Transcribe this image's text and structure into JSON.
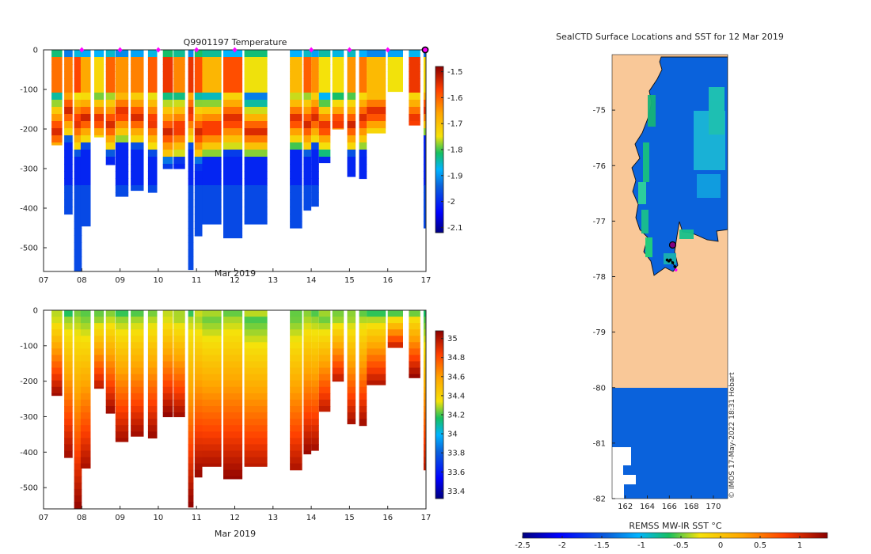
{
  "chart_data": [
    {
      "type": "heatmap",
      "title": "Q9901197  Temperature",
      "xlabel": "Mar 2019",
      "ylabel": "",
      "x_ticks": [
        "07",
        "08",
        "09",
        "10",
        "11",
        "12",
        "13",
        "14",
        "15",
        "16",
        "17"
      ],
      "x_range": [
        7,
        17
      ],
      "y_ticks": [
        0,
        -100,
        -200,
        -300,
        -400,
        -500
      ],
      "y_range": [
        -560,
        0
      ],
      "colorbar": {
        "ticks": [
          -1.5,
          -1.6,
          -1.7,
          -1.8,
          -1.9,
          -2,
          -2.1
        ],
        "min": -2.12,
        "max": -1.48
      },
      "markers_x": [
        8,
        9,
        10,
        11,
        12,
        14,
        15,
        16,
        17
      ],
      "profiles": [
        {
          "x": 7.35,
          "w": 0.28,
          "depth": 240
        },
        {
          "x": 7.65,
          "w": 0.22,
          "depth": 415
        },
        {
          "x": 7.9,
          "w": 0.2,
          "depth": 560
        },
        {
          "x": 8.1,
          "w": 0.26,
          "depth": 445
        },
        {
          "x": 8.45,
          "w": 0.25,
          "depth": 220
        },
        {
          "x": 8.75,
          "w": 0.24,
          "depth": 290
        },
        {
          "x": 9.05,
          "w": 0.34,
          "depth": 370
        },
        {
          "x": 9.45,
          "w": 0.34,
          "depth": 355
        },
        {
          "x": 9.85,
          "w": 0.24,
          "depth": 360
        },
        {
          "x": 10.25,
          "w": 0.26,
          "depth": 300
        },
        {
          "x": 10.55,
          "w": 0.3,
          "depth": 300
        },
        {
          "x": 10.85,
          "w": 0.14,
          "depth": 555
        },
        {
          "x": 11.05,
          "w": 0.2,
          "depth": 470
        },
        {
          "x": 11.4,
          "w": 0.5,
          "depth": 440
        },
        {
          "x": 11.95,
          "w": 0.5,
          "depth": 475
        },
        {
          "x": 12.55,
          "w": 0.6,
          "depth": 440
        },
        {
          "x": 13.6,
          "w": 0.32,
          "depth": 450
        },
        {
          "x": 13.9,
          "w": 0.2,
          "depth": 405
        },
        {
          "x": 14.1,
          "w": 0.2,
          "depth": 395
        },
        {
          "x": 14.35,
          "w": 0.3,
          "depth": 285
        },
        {
          "x": 14.7,
          "w": 0.3,
          "depth": 200
        },
        {
          "x": 15.05,
          "w": 0.22,
          "depth": 320
        },
        {
          "x": 15.35,
          "w": 0.2,
          "depth": 325
        },
        {
          "x": 15.7,
          "w": 0.5,
          "depth": 210
        },
        {
          "x": 16.2,
          "w": 0.4,
          "depth": 105
        },
        {
          "x": 16.7,
          "w": 0.3,
          "depth": 190
        },
        {
          "x": 16.97,
          "w": 0.07,
          "depth": 450
        }
      ]
    },
    {
      "type": "heatmap",
      "title": "",
      "xlabel": "Mar 2019",
      "ylabel": "",
      "x_ticks": [
        "07",
        "08",
        "09",
        "10",
        "11",
        "12",
        "13",
        "14",
        "15",
        "16",
        "17"
      ],
      "x_range": [
        7,
        17
      ],
      "y_ticks": [
        0,
        -100,
        -200,
        -300,
        -400,
        -500
      ],
      "y_range": [
        -560,
        0
      ],
      "colorbar": {
        "ticks": [
          35,
          34.8,
          34.6,
          34.4,
          34.2,
          34,
          33.8,
          33.6,
          33.4
        ],
        "min": 33.32,
        "max": 35.08
      },
      "profiles": [
        {
          "x": 7.35,
          "w": 0.28,
          "depth": 240
        },
        {
          "x": 7.65,
          "w": 0.22,
          "depth": 415
        },
        {
          "x": 7.9,
          "w": 0.2,
          "depth": 560
        },
        {
          "x": 8.1,
          "w": 0.26,
          "depth": 445
        },
        {
          "x": 8.45,
          "w": 0.25,
          "depth": 220
        },
        {
          "x": 8.75,
          "w": 0.24,
          "depth": 290
        },
        {
          "x": 9.05,
          "w": 0.34,
          "depth": 370
        },
        {
          "x": 9.45,
          "w": 0.34,
          "depth": 355
        },
        {
          "x": 9.85,
          "w": 0.24,
          "depth": 360
        },
        {
          "x": 10.25,
          "w": 0.26,
          "depth": 300
        },
        {
          "x": 10.55,
          "w": 0.3,
          "depth": 300
        },
        {
          "x": 10.85,
          "w": 0.14,
          "depth": 555
        },
        {
          "x": 11.05,
          "w": 0.2,
          "depth": 470
        },
        {
          "x": 11.4,
          "w": 0.5,
          "depth": 440
        },
        {
          "x": 11.95,
          "w": 0.5,
          "depth": 475
        },
        {
          "x": 12.55,
          "w": 0.6,
          "depth": 440
        },
        {
          "x": 13.6,
          "w": 0.32,
          "depth": 450
        },
        {
          "x": 13.9,
          "w": 0.2,
          "depth": 405
        },
        {
          "x": 14.1,
          "w": 0.2,
          "depth": 395
        },
        {
          "x": 14.35,
          "w": 0.3,
          "depth": 285
        },
        {
          "x": 14.7,
          "w": 0.3,
          "depth": 200
        },
        {
          "x": 15.05,
          "w": 0.22,
          "depth": 320
        },
        {
          "x": 15.35,
          "w": 0.2,
          "depth": 325
        },
        {
          "x": 15.7,
          "w": 0.5,
          "depth": 210
        },
        {
          "x": 16.2,
          "w": 0.4,
          "depth": 105
        },
        {
          "x": 16.7,
          "w": 0.3,
          "depth": 190
        },
        {
          "x": 16.97,
          "w": 0.07,
          "depth": 450
        }
      ]
    },
    {
      "type": "heatmap",
      "title": "SealCTD Surface Locations and SST for 12 Mar 2019",
      "xlabel": "",
      "ylabel": "",
      "x_ticks": [
        "162",
        "164",
        "166",
        "168",
        "170"
      ],
      "x_range": [
        160.8,
        171.3
      ],
      "y_ticks": [
        "-75",
        "-76",
        "-77",
        "-78",
        "-79",
        "-80",
        "-81",
        "-82"
      ],
      "y_range": [
        -82,
        -74
      ],
      "colorbar": {
        "label": "REMSS MW-IR SST °C",
        "ticks": [
          "-2.5",
          "-2",
          "-1.5",
          "-1",
          "-0.5",
          "0",
          "0.5",
          "1"
        ],
        "min": -2.5,
        "max": 1.35
      },
      "credit": "© IMOS 17-May-2022 18:31 Hobart",
      "track": [
        [
          165.8,
          -77.7
        ],
        [
          165.95,
          -77.72
        ],
        [
          166.1,
          -77.7
        ],
        [
          166.3,
          -77.75
        ],
        [
          166.5,
          -77.82
        ],
        [
          166.6,
          -77.88
        ]
      ],
      "current_location": [
        166.3,
        -77.43
      ]
    }
  ],
  "colors": {
    "land": "#f9c898",
    "ocean": "#0a62dc",
    "marker": "#ff00ff",
    "current": "#800080"
  }
}
